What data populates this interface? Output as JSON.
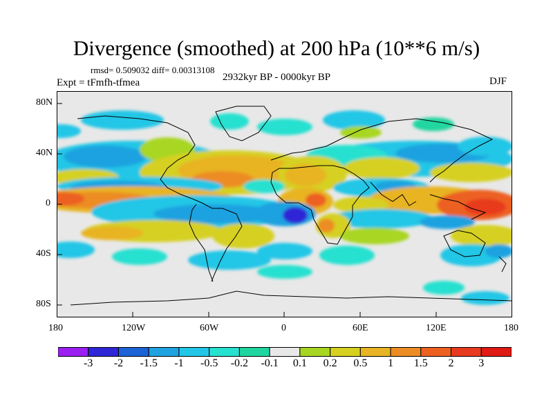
{
  "title": "Divergence (smoothed) at 200 hPa (10**6 m/s)",
  "stats": "rmsd= 0.509032 diff= 0.00313108",
  "experiment": "Expt = tFmfh-tfmea",
  "period": "2932kyr BP - 0000kyr BP",
  "season": "DJF",
  "lat_ticks": [
    "80N",
    "40N",
    "0",
    "40S",
    "80S"
  ],
  "lon_ticks": [
    "180",
    "120W",
    "60W",
    "0",
    "60E",
    "120E",
    "180"
  ],
  "colorbar": {
    "labels": [
      "-3",
      "-2",
      "-1.5",
      "-1",
      "-0.5",
      "-0.2",
      "-0.1",
      "0.1",
      "0.2",
      "0.5",
      "1",
      "1.5",
      "2",
      "3"
    ],
    "colors": [
      "#9a1ff0",
      "#2f26d6",
      "#1c63d6",
      "#1fa2e0",
      "#22c6e6",
      "#26e0d0",
      "#20d6a0",
      "#e8e8e8",
      "#a8d620",
      "#d6d020",
      "#e8b424",
      "#ec8c24",
      "#ec6020",
      "#e83a1e",
      "#e01a14"
    ]
  }
}
